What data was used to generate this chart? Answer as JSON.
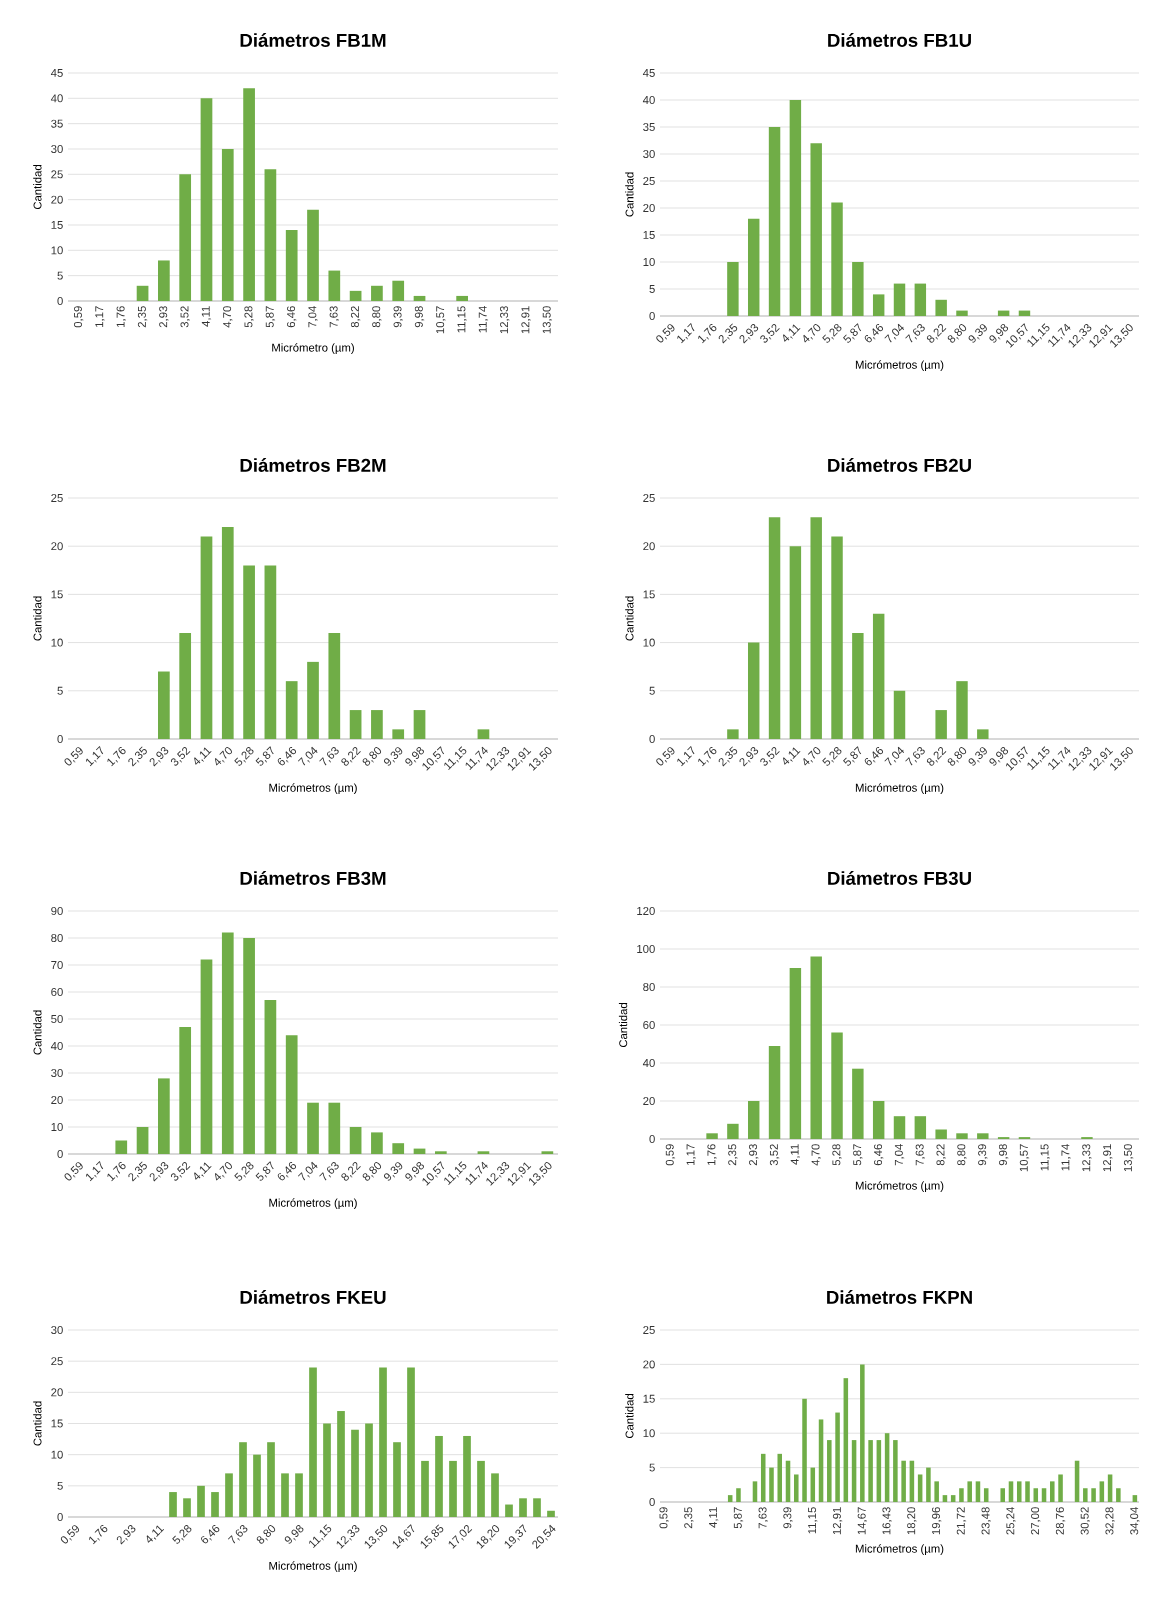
{
  "chart_data": [
    {
      "type": "bar",
      "title": "Diámetros FB1M",
      "xlabel": "Micrómetro (µm)",
      "ylabel": "Cantidad",
      "color": "#70ad47",
      "grid": "y",
      "ylim": [
        0,
        45
      ],
      "yticks": [
        0,
        5,
        10,
        15,
        20,
        25,
        30,
        35,
        40,
        45
      ],
      "categories": [
        "0,59",
        "1,17",
        "1,76",
        "2,35",
        "2,93",
        "3,52",
        "4,11",
        "4,70",
        "5,28",
        "5,87",
        "6,46",
        "7,04",
        "7,63",
        "8,22",
        "8,80",
        "9,39",
        "9,98",
        "10,57",
        "11,15",
        "11,74",
        "12,33",
        "12,91",
        "13,50"
      ],
      "values": [
        0,
        0,
        0,
        3,
        8,
        25,
        40,
        30,
        42,
        26,
        14,
        18,
        6,
        2,
        3,
        4,
        1,
        0,
        1,
        0,
        0,
        0,
        0
      ]
    },
    {
      "type": "bar",
      "title": "Diámetros FB1U",
      "xlabel": "Micrómetros (µm)",
      "ylabel": "Cantidad",
      "color": "#70ad47",
      "grid": "y",
      "ylim": [
        0,
        45
      ],
      "yticks": [
        0,
        5,
        10,
        15,
        20,
        25,
        30,
        35,
        40,
        45
      ],
      "categories": [
        "0,59",
        "1,17",
        "1,76",
        "2,35",
        "2,93",
        "3,52",
        "4,11",
        "4,70",
        "5,28",
        "5,87",
        "6,46",
        "7,04",
        "7,63",
        "8,22",
        "8,80",
        "9,39",
        "9,98",
        "10,57",
        "11,15",
        "11,74",
        "12,33",
        "12,91",
        "13,50"
      ],
      "values": [
        0,
        0,
        0,
        10,
        18,
        35,
        40,
        32,
        21,
        10,
        4,
        6,
        6,
        3,
        1,
        0,
        1,
        1,
        0,
        0,
        0,
        0,
        0
      ]
    },
    {
      "type": "bar",
      "title": "Diámetros FB2M",
      "xlabel": "Micrómetros (µm)",
      "ylabel": "Cantidad",
      "color": "#70ad47",
      "grid": "y",
      "ylim": [
        0,
        25
      ],
      "yticks": [
        0,
        5,
        10,
        15,
        20,
        25
      ],
      "categories": [
        "0,59",
        "1,17",
        "1,76",
        "2,35",
        "2,93",
        "3,52",
        "4,11",
        "4,70",
        "5,28",
        "5,87",
        "6,46",
        "7,04",
        "7,63",
        "8,22",
        "8,80",
        "9,39",
        "9,98",
        "10,57",
        "11,15",
        "11,74",
        "12,33",
        "12,91",
        "13,50"
      ],
      "values": [
        0,
        0,
        0,
        0,
        7,
        11,
        21,
        22,
        18,
        18,
        6,
        8,
        11,
        3,
        3,
        1,
        3,
        0,
        0,
        1,
        0,
        0,
        0
      ]
    },
    {
      "type": "bar",
      "title": "Diámetros FB2U",
      "xlabel": "Micrómetros (µm)",
      "ylabel": "Cantidad",
      "color": "#70ad47",
      "grid": "y",
      "ylim": [
        0,
        25
      ],
      "yticks": [
        0,
        5,
        10,
        15,
        20,
        25
      ],
      "categories": [
        "0,59",
        "1,17",
        "1,76",
        "2,35",
        "2,93",
        "3,52",
        "4,11",
        "4,70",
        "5,28",
        "5,87",
        "6,46",
        "7,04",
        "7,63",
        "8,22",
        "8,80",
        "9,39",
        "9,98",
        "10,57",
        "11,15",
        "11,74",
        "12,33",
        "12,91",
        "13,50"
      ],
      "values": [
        0,
        0,
        0,
        1,
        10,
        23,
        20,
        23,
        21,
        11,
        13,
        5,
        0,
        3,
        6,
        1,
        0,
        0,
        0,
        0,
        0,
        0,
        0
      ]
    },
    {
      "type": "bar",
      "title": "Diámetros FB3M",
      "xlabel": "Micrómetros (µm)",
      "ylabel": "Cantidad",
      "color": "#70ad47",
      "grid": "y",
      "ylim": [
        0,
        90
      ],
      "yticks": [
        0,
        10,
        20,
        30,
        40,
        50,
        60,
        70,
        80,
        90
      ],
      "categories": [
        "0,59",
        "1,17",
        "1,76",
        "2,35",
        "2,93",
        "3,52",
        "4,11",
        "4,70",
        "5,28",
        "5,87",
        "6,46",
        "7,04",
        "7,63",
        "8,22",
        "8,80",
        "9,39",
        "9,98",
        "10,57",
        "11,15",
        "11,74",
        "12,33",
        "12,91",
        "13,50"
      ],
      "values": [
        0,
        0,
        5,
        10,
        28,
        47,
        72,
        82,
        80,
        57,
        44,
        19,
        19,
        10,
        8,
        4,
        2,
        1,
        0,
        1,
        0,
        0,
        1
      ]
    },
    {
      "type": "bar",
      "title": "Diámetros FB3U",
      "xlabel": "Micrómetros (µm)",
      "ylabel": "Cantidad",
      "color": "#70ad47",
      "grid": "y",
      "ylim": [
        0,
        120
      ],
      "yticks": [
        0,
        20,
        40,
        60,
        80,
        100,
        120
      ],
      "categories": [
        "0,59",
        "1,17",
        "1,76",
        "2,35",
        "2,93",
        "3,52",
        "4,11",
        "4,70",
        "5,28",
        "5,87",
        "6,46",
        "7,04",
        "7,63",
        "8,22",
        "8,80",
        "9,39",
        "9,98",
        "10,57",
        "11,15",
        "11,74",
        "12,33",
        "12,91",
        "13,50"
      ],
      "values": [
        0,
        0,
        3,
        8,
        20,
        49,
        90,
        96,
        56,
        37,
        20,
        12,
        12,
        5,
        3,
        3,
        1,
        1,
        0,
        0,
        1,
        0,
        0
      ]
    },
    {
      "type": "bar",
      "title": "Diámetros FKEU",
      "xlabel": "Micrómetros (µm)",
      "ylabel": "Cantidad",
      "color": "#70ad47",
      "grid": "y",
      "ylim": [
        0,
        30
      ],
      "yticks": [
        0,
        5,
        10,
        15,
        20,
        25,
        30
      ],
      "categories": [
        "0,59",
        null,
        "1,76",
        null,
        "2,93",
        null,
        "4,11",
        null,
        "5,28",
        null,
        "6,46",
        null,
        "7,63",
        null,
        "8,80",
        null,
        "9,98",
        null,
        "11,15",
        null,
        "12,33",
        null,
        "13,50",
        null,
        "14,67",
        null,
        "15,85",
        null,
        "17,02",
        null,
        "18,20",
        null,
        "19,37",
        null,
        "20,54"
      ],
      "values": [
        0,
        0,
        0,
        0,
        0,
        0,
        0,
        4,
        3,
        5,
        4,
        7,
        12,
        10,
        12,
        7,
        7,
        24,
        15,
        17,
        14,
        15,
        24,
        12,
        24,
        9,
        13,
        9,
        13,
        9,
        7,
        2,
        3,
        3,
        1
      ]
    },
    {
      "type": "bar",
      "title": "Diámetros FKPN",
      "xlabel": "Micrómetros (µm)",
      "ylabel": "Cantidad",
      "color": "#70ad47",
      "grid": "y",
      "ylim": [
        0,
        25
      ],
      "yticks": [
        0,
        5,
        10,
        15,
        20,
        25
      ],
      "categories": [
        "0,59",
        null,
        null,
        "2,35",
        null,
        null,
        "4,11",
        null,
        null,
        "5,87",
        null,
        null,
        "7,63",
        null,
        null,
        "9,39",
        null,
        null,
        "11,15",
        null,
        null,
        "12,91",
        null,
        null,
        "14,67",
        null,
        null,
        "16,43",
        null,
        null,
        "18,20",
        null,
        null,
        "19,96",
        null,
        null,
        "21,72",
        null,
        null,
        "23,48",
        null,
        null,
        "25,24",
        null,
        null,
        "27,00",
        null,
        null,
        "28,76",
        null,
        null,
        "30,52",
        null,
        null,
        "32,28",
        null,
        null,
        "34,04"
      ],
      "values": [
        0,
        0,
        0,
        0,
        0,
        0,
        0,
        0,
        1,
        2,
        0,
        3,
        7,
        5,
        7,
        6,
        4,
        15,
        5,
        12,
        9,
        13,
        18,
        9,
        20,
        9,
        9,
        10,
        9,
        6,
        6,
        4,
        5,
        3,
        1,
        1,
        2,
        3,
        3,
        2,
        0,
        2,
        3,
        3,
        3,
        2,
        2,
        3,
        4,
        0,
        6,
        2,
        2,
        3,
        4,
        2,
        0,
        1
      ]
    }
  ]
}
